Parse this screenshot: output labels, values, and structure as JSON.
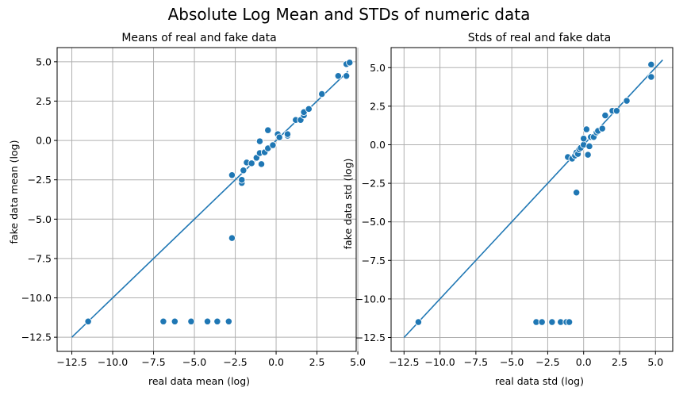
{
  "title": "Absolute Log Mean and STDs of numeric data",
  "colors": {
    "series": "#1f77b4",
    "grid": "#b0b0b0"
  },
  "chart_data": [
    {
      "type": "scatter",
      "title": "Means of real and fake data",
      "xlabel": "real data mean (log)",
      "ylabel": "fake data mean (log)",
      "xlim": [
        -13.4,
        4.9
      ],
      "ylim": [
        -13.4,
        5.9
      ],
      "xticks": [
        -12.5,
        -10.0,
        -7.5,
        -5.0,
        -2.5,
        0.0,
        2.5,
        5.0
      ],
      "xticklabels": [
        "−12.5",
        "−10.0",
        "−7.5",
        "−5.0",
        "−2.5",
        "0.0",
        "2.5",
        "5.0"
      ],
      "yticks": [
        -12.5,
        -10.0,
        -7.5,
        -5.0,
        -2.5,
        0.0,
        2.5,
        5.0
      ],
      "yticklabels": [
        "−12.5",
        "−10.0",
        "−7.5",
        "−5.0",
        "−2.5",
        "0.0",
        "2.5",
        "5.0"
      ],
      "grid": true,
      "reference_line": {
        "x": [
          -12.5,
          4.4
        ],
        "y": [
          -12.5,
          4.4
        ]
      },
      "points": [
        {
          "x": -11.5,
          "y": -11.5
        },
        {
          "x": -6.9,
          "y": -11.5
        },
        {
          "x": -6.2,
          "y": -11.5
        },
        {
          "x": -5.2,
          "y": -11.5
        },
        {
          "x": -4.2,
          "y": -11.5
        },
        {
          "x": -3.6,
          "y": -11.5
        },
        {
          "x": -2.9,
          "y": -11.5
        },
        {
          "x": -2.7,
          "y": -6.2
        },
        {
          "x": -2.7,
          "y": -2.2
        },
        {
          "x": -2.1,
          "y": -2.7
        },
        {
          "x": -2.1,
          "y": -2.5
        },
        {
          "x": -2.0,
          "y": -1.9
        },
        {
          "x": -1.8,
          "y": -1.4
        },
        {
          "x": -1.5,
          "y": -1.45
        },
        {
          "x": -1.2,
          "y": -1.1
        },
        {
          "x": -1.0,
          "y": -0.8
        },
        {
          "x": -1.0,
          "y": -0.05
        },
        {
          "x": -0.9,
          "y": -1.5
        },
        {
          "x": -0.7,
          "y": -0.75
        },
        {
          "x": -0.5,
          "y": -0.5
        },
        {
          "x": -0.5,
          "y": 0.65
        },
        {
          "x": -0.2,
          "y": -0.3
        },
        {
          "x": 0.1,
          "y": 0.4
        },
        {
          "x": 0.2,
          "y": 0.2
        },
        {
          "x": 0.7,
          "y": 0.3
        },
        {
          "x": 0.7,
          "y": 0.4
        },
        {
          "x": 1.2,
          "y": 1.3
        },
        {
          "x": 1.5,
          "y": 1.3
        },
        {
          "x": 1.7,
          "y": 1.6
        },
        {
          "x": 1.7,
          "y": 1.8
        },
        {
          "x": 2.0,
          "y": 2.0
        },
        {
          "x": 2.8,
          "y": 2.95
        },
        {
          "x": 3.8,
          "y": 4.1
        },
        {
          "x": 4.3,
          "y": 4.1
        },
        {
          "x": 4.3,
          "y": 4.85
        },
        {
          "x": 4.5,
          "y": 4.95
        }
      ]
    },
    {
      "type": "scatter",
      "title": "Stds of real and fake data",
      "xlabel": "real data std (log)",
      "ylabel": "fake data std (log)",
      "xlim": [
        -13.4,
        6.2
      ],
      "ylim": [
        -13.4,
        6.3
      ],
      "xticks": [
        -12.5,
        -10.0,
        -7.5,
        -5.0,
        -2.5,
        0.0,
        2.5,
        5.0
      ],
      "xticklabels": [
        "−12.5",
        "−10.0",
        "−7.5",
        "−5.0",
        "−2.5",
        "0.0",
        "2.5",
        "5.0"
      ],
      "yticks": [
        -12.5,
        -10.0,
        -7.5,
        -5.0,
        -2.5,
        0.0,
        2.5,
        5.0
      ],
      "yticklabels": [
        "−12.5",
        "−10.0",
        "−7.5",
        "−5.0",
        "−2.5",
        "0.0",
        "2.5",
        "5.0"
      ],
      "grid": true,
      "reference_line": {
        "x": [
          -12.5,
          5.5
        ],
        "y": [
          -12.5,
          5.5
        ]
      },
      "points": [
        {
          "x": -11.5,
          "y": -11.5
        },
        {
          "x": -3.3,
          "y": -11.5
        },
        {
          "x": -2.9,
          "y": -11.5
        },
        {
          "x": -2.2,
          "y": -11.5
        },
        {
          "x": -1.6,
          "y": -11.5
        },
        {
          "x": -1.2,
          "y": -11.5
        },
        {
          "x": -1.0,
          "y": -11.5
        },
        {
          "x": -0.5,
          "y": -3.1
        },
        {
          "x": -1.1,
          "y": -0.8
        },
        {
          "x": -0.8,
          "y": -0.9
        },
        {
          "x": -0.6,
          "y": -0.7
        },
        {
          "x": -0.5,
          "y": -0.5
        },
        {
          "x": -0.4,
          "y": -0.6
        },
        {
          "x": -0.3,
          "y": -0.3
        },
        {
          "x": -0.2,
          "y": -0.2
        },
        {
          "x": 0.0,
          "y": 0.0
        },
        {
          "x": 0.0,
          "y": 0.4
        },
        {
          "x": 0.2,
          "y": 1.0
        },
        {
          "x": 0.3,
          "y": -0.65
        },
        {
          "x": 0.4,
          "y": -0.1
        },
        {
          "x": 0.5,
          "y": 0.5
        },
        {
          "x": 0.7,
          "y": 0.5
        },
        {
          "x": 0.9,
          "y": 0.8
        },
        {
          "x": 1.0,
          "y": 0.9
        },
        {
          "x": 1.3,
          "y": 1.05
        },
        {
          "x": 1.5,
          "y": 1.9
        },
        {
          "x": 2.0,
          "y": 2.2
        },
        {
          "x": 2.3,
          "y": 2.2
        },
        {
          "x": 3.0,
          "y": 2.85
        },
        {
          "x": 4.7,
          "y": 5.2
        },
        {
          "x": 4.7,
          "y": 4.4
        }
      ]
    }
  ]
}
